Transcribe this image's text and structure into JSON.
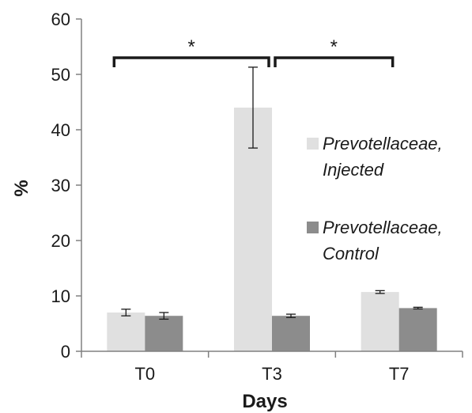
{
  "chart_data": {
    "type": "bar",
    "title": "",
    "xlabel": "Days",
    "ylabel": "%",
    "categories": [
      "T0",
      "T3",
      "T7"
    ],
    "ylim": [
      0,
      60
    ],
    "yticks": [
      0,
      10,
      20,
      30,
      40,
      50,
      60
    ],
    "grid": false,
    "legend_position": "right",
    "series": [
      {
        "name": "Prevotellaceae, Injected",
        "name_lines": [
          "Prevotellaceae,",
          "Injected"
        ],
        "color": "#e0e0e0",
        "values": [
          7.0,
          44.0,
          10.7
        ],
        "errors": [
          0.6,
          7.3,
          0.25
        ]
      },
      {
        "name": "Prevotellaceae, Control",
        "name_lines": [
          "Prevotellaceae,",
          "Control"
        ],
        "color": "#8c8c8c",
        "values": [
          6.4,
          6.4,
          7.8
        ],
        "errors": [
          0.6,
          0.3,
          0.15
        ]
      }
    ],
    "significance": [
      {
        "from_category": "T0",
        "to_category": "T3",
        "label": "*",
        "y": 53
      },
      {
        "from_category": "T3",
        "to_category": "T7",
        "label": "*",
        "y": 53
      }
    ]
  }
}
